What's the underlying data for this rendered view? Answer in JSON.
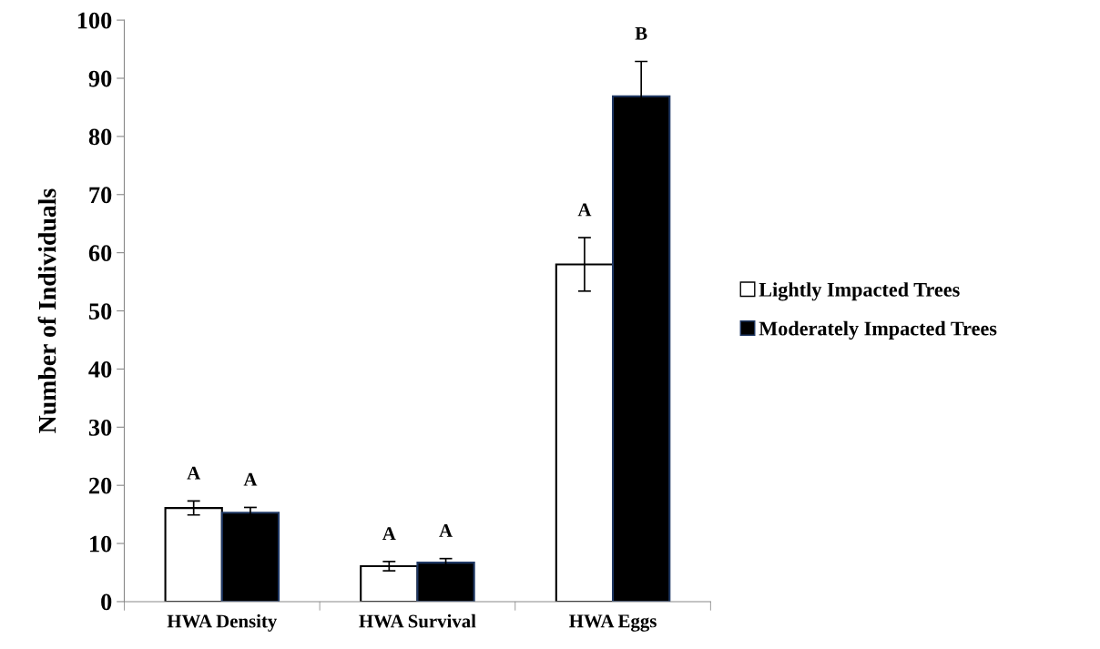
{
  "chart_data": {
    "type": "bar",
    "ylabel": "Number of Individuals",
    "categories": [
      "HWA Density",
      "HWA Survival",
      "HWA Eggs"
    ],
    "series": [
      {
        "name": "Lightly Impacted Trees",
        "color": "#ffffff",
        "values": [
          16.1,
          6.1,
          58.0
        ],
        "errors": [
          1.2,
          0.8,
          4.6
        ],
        "value_labels": [
          "A",
          "A",
          "A"
        ]
      },
      {
        "name": "Moderately Impacted Trees",
        "color": "#000000",
        "values": [
          15.3,
          6.7,
          86.9
        ],
        "errors": [
          0.9,
          0.7,
          6.0
        ],
        "value_labels": [
          "A",
          "A",
          "B"
        ]
      }
    ],
    "ylim": [
      0,
      100
    ],
    "yticks": [
      0,
      10,
      20,
      30,
      40,
      50,
      60,
      70,
      80,
      90,
      100
    ],
    "grid": false,
    "legend": "right"
  }
}
